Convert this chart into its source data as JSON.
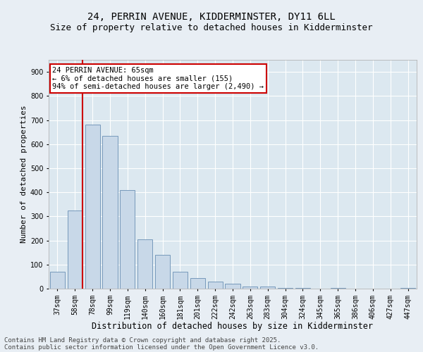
{
  "title1": "24, PERRIN AVENUE, KIDDERMINSTER, DY11 6LL",
  "title2": "Size of property relative to detached houses in Kidderminster",
  "xlabel": "Distribution of detached houses by size in Kidderminster",
  "ylabel": "Number of detached properties",
  "categories": [
    "37sqm",
    "58sqm",
    "78sqm",
    "99sqm",
    "119sqm",
    "140sqm",
    "160sqm",
    "181sqm",
    "201sqm",
    "222sqm",
    "242sqm",
    "263sqm",
    "283sqm",
    "304sqm",
    "324sqm",
    "345sqm",
    "365sqm",
    "386sqm",
    "406sqm",
    "427sqm",
    "447sqm"
  ],
  "values": [
    70,
    325,
    680,
    635,
    410,
    205,
    140,
    70,
    45,
    30,
    20,
    10,
    8,
    4,
    3,
    1,
    3,
    1,
    0,
    1,
    3
  ],
  "bar_color": "#c8d8e8",
  "bar_edge_color": "#7799bb",
  "highlight_line_color": "#cc0000",
  "highlight_bar_index": 1,
  "annotation_text": "24 PERRIN AVENUE: 65sqm\n← 6% of detached houses are smaller (155)\n94% of semi-detached houses are larger (2,490) →",
  "annotation_box_color": "#ffffff",
  "annotation_box_edge_color": "#cc0000",
  "ylim": [
    0,
    950
  ],
  "yticks": [
    0,
    100,
    200,
    300,
    400,
    500,
    600,
    700,
    800,
    900
  ],
  "background_color": "#e8eef4",
  "plot_bg_color": "#dce8f0",
  "grid_color": "#ffffff",
  "footer1": "Contains HM Land Registry data © Crown copyright and database right 2025.",
  "footer2": "Contains public sector information licensed under the Open Government Licence v3.0.",
  "title1_fontsize": 10,
  "title2_fontsize": 9,
  "xlabel_fontsize": 8.5,
  "ylabel_fontsize": 8,
  "tick_fontsize": 7,
  "footer_fontsize": 6.5,
  "annot_fontsize": 7.5
}
